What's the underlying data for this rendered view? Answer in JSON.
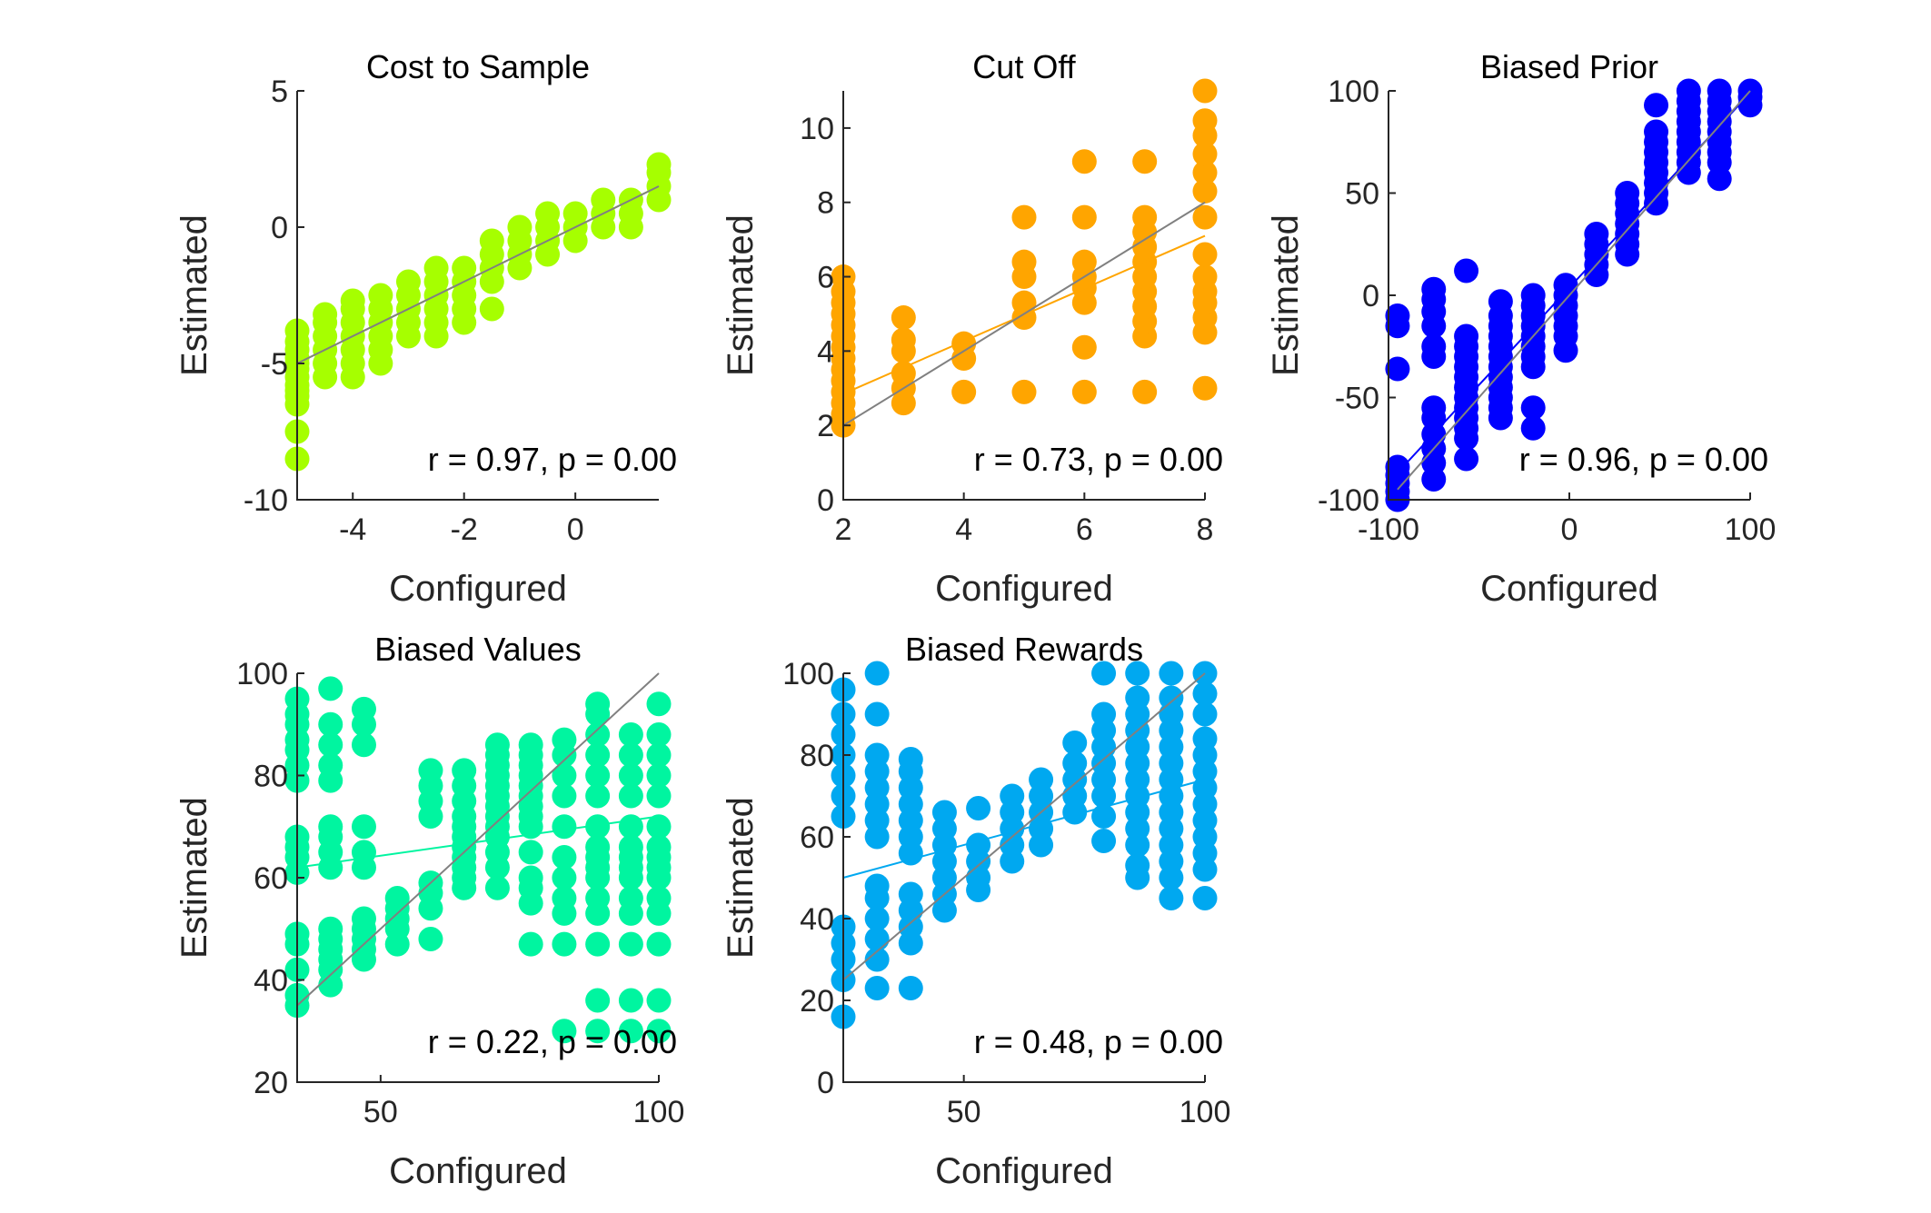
{
  "colors": {
    "identity_line": "#808080",
    "axis": "#262626"
  },
  "chart_data": [
    {
      "type": "scatter",
      "title": "Cost to Sample",
      "xlabel": "Configured",
      "ylabel": "Estimated",
      "xlim": [
        -5,
        1.5
      ],
      "ylim": [
        -10,
        5
      ],
      "xticks": [
        -4,
        -2,
        0
      ],
      "xtick_labels": [
        "-4",
        "-2",
        "0"
      ],
      "yticks": [
        -10,
        -5,
        0,
        5
      ],
      "ytick_labels": [
        "-10",
        "-5",
        "0",
        "5"
      ],
      "color": "#A6FF00",
      "annotation": "r = 0.97, p = 0.00",
      "fit_line": {
        "x": [
          -5,
          1.5
        ],
        "y": [
          -5.0,
          1.5
        ]
      },
      "identity_line": {
        "x": [
          -5,
          1.5
        ],
        "y": [
          -5,
          1.5
        ]
      },
      "points": [
        {
          "x": -5.0,
          "y": [
            -8.5,
            -7.5,
            -6.5,
            -6.2,
            -6.0,
            -5.8,
            -5.5,
            -5.2,
            -5.0,
            -4.8,
            -4.5,
            -4.2,
            -3.8
          ]
        },
        {
          "x": -4.5,
          "y": [
            -5.5,
            -5.0,
            -4.5,
            -4.0,
            -3.5,
            -3.2
          ]
        },
        {
          "x": -4.0,
          "y": [
            -5.5,
            -5.0,
            -4.5,
            -4.0,
            -3.5,
            -3.0,
            -2.7
          ]
        },
        {
          "x": -3.5,
          "y": [
            -5.0,
            -4.5,
            -4.0,
            -3.5,
            -3.0,
            -2.5
          ]
        },
        {
          "x": -3.0,
          "y": [
            -4.0,
            -3.5,
            -3.0,
            -2.5,
            -2.0
          ]
        },
        {
          "x": -2.5,
          "y": [
            -4.0,
            -3.5,
            -3.0,
            -2.5,
            -2.0,
            -1.5
          ]
        },
        {
          "x": -2.0,
          "y": [
            -3.5,
            -3.0,
            -2.5,
            -2.0,
            -1.5
          ]
        },
        {
          "x": -1.5,
          "y": [
            -3.0,
            -2.0,
            -1.5,
            -1.0,
            -0.5
          ]
        },
        {
          "x": -1.0,
          "y": [
            -1.5,
            -1.0,
            -0.5,
            0.0
          ]
        },
        {
          "x": -0.5,
          "y": [
            -1.0,
            -0.5,
            0.0,
            0.5
          ]
        },
        {
          "x": 0.0,
          "y": [
            -0.5,
            0.0,
            0.5
          ]
        },
        {
          "x": 0.5,
          "y": [
            0.0,
            0.5,
            1.0
          ]
        },
        {
          "x": 1.0,
          "y": [
            0.0,
            0.5,
            1.0
          ]
        },
        {
          "x": 1.5,
          "y": [
            1.0,
            1.5,
            2.0,
            2.3
          ]
        }
      ]
    },
    {
      "type": "scatter",
      "title": "Cut Off",
      "xlabel": "Configured",
      "ylabel": "Estimated",
      "xlim": [
        2,
        8
      ],
      "ylim": [
        0,
        11
      ],
      "xticks": [
        2,
        4,
        6,
        8
      ],
      "xtick_labels": [
        "2",
        "4",
        "6",
        "8"
      ],
      "yticks": [
        0,
        2,
        4,
        6,
        8,
        10
      ],
      "ytick_labels": [
        "0",
        "2",
        "4",
        "6",
        "8",
        "10"
      ],
      "color": "#FFA500",
      "annotation": "r = 0.73, p = 0.00",
      "fit_line": {
        "x": [
          2,
          8
        ],
        "y": [
          2.85,
          7.1
        ]
      },
      "identity_line": {
        "x": [
          2,
          8
        ],
        "y": [
          2,
          8
        ]
      },
      "points": [
        {
          "x": 2,
          "y": [
            2.0,
            2.3,
            2.6,
            2.9,
            3.2,
            3.5,
            3.8,
            4.1,
            4.4,
            4.7,
            5.0,
            5.3,
            5.6,
            6.0
          ]
        },
        {
          "x": 3,
          "y": [
            2.6,
            3.0,
            3.4,
            4.0,
            4.3,
            4.9
          ]
        },
        {
          "x": 4,
          "y": [
            2.9,
            3.8,
            4.2
          ]
        },
        {
          "x": 5,
          "y": [
            2.9,
            4.9,
            5.3,
            6.0,
            6.4,
            7.6
          ]
        },
        {
          "x": 6,
          "y": [
            2.9,
            4.1,
            5.3,
            5.7,
            6.0,
            6.4,
            7.6,
            9.1
          ]
        },
        {
          "x": 7,
          "y": [
            2.9,
            4.4,
            4.8,
            5.2,
            5.6,
            6.0,
            6.4,
            6.8,
            7.2,
            7.6,
            9.1
          ]
        },
        {
          "x": 8,
          "y": [
            3.0,
            4.5,
            4.9,
            5.3,
            5.6,
            6.0,
            6.6,
            7.6,
            8.3,
            8.8,
            9.3,
            9.8,
            10.2,
            11.0
          ]
        }
      ]
    },
    {
      "type": "scatter",
      "title": "Biased Prior",
      "xlabel": "Configured",
      "ylabel": "Estimated",
      "xlim": [
        -100,
        100
      ],
      "ylim": [
        -100,
        100
      ],
      "xticks": [
        -100,
        0,
        100
      ],
      "xtick_labels": [
        "-100",
        "0",
        "100"
      ],
      "yticks": [
        -100,
        -50,
        0,
        50,
        100
      ],
      "ytick_labels": [
        "-100",
        "-50",
        "0",
        "50",
        "100"
      ],
      "color": "#0000FF",
      "annotation": "r = 0.96, p = 0.00",
      "fit_line": {
        "x": [
          -90,
          100
        ],
        "y": [
          -82,
          99
        ]
      },
      "identity_line": {
        "x": [
          -95,
          100
        ],
        "y": [
          -95,
          100
        ]
      },
      "points": [
        {
          "x": -95,
          "y": [
            -100,
            -96,
            -92,
            -88,
            -84,
            -36,
            -15,
            -10
          ]
        },
        {
          "x": -75,
          "y": [
            -90,
            -82,
            -75,
            -68,
            -60,
            -55,
            -30,
            -25,
            -15,
            -8,
            -2,
            3
          ]
        },
        {
          "x": -57,
          "y": [
            -80,
            -70,
            -65,
            -60,
            -55,
            -50,
            -45,
            -40,
            -35,
            -30,
            -25,
            -20,
            12
          ]
        },
        {
          "x": -38,
          "y": [
            -60,
            -55,
            -50,
            -45,
            -40,
            -35,
            -30,
            -25,
            -20,
            -15,
            -10,
            -3
          ]
        },
        {
          "x": -20,
          "y": [
            -65,
            -55,
            -35,
            -30,
            -25,
            -20,
            -15,
            -10,
            -5,
            0
          ]
        },
        {
          "x": -2,
          "y": [
            -27,
            -20,
            -15,
            -10,
            -5,
            0,
            5
          ]
        },
        {
          "x": 15,
          "y": [
            10,
            15,
            20,
            25,
            30
          ]
        },
        {
          "x": 32,
          "y": [
            20,
            25,
            30,
            35,
            40,
            45,
            50
          ]
        },
        {
          "x": 48,
          "y": [
            45,
            50,
            55,
            60,
            65,
            70,
            75,
            80,
            93
          ]
        },
        {
          "x": 66,
          "y": [
            60,
            65,
            70,
            75,
            80,
            85,
            90,
            95,
            100
          ]
        },
        {
          "x": 83,
          "y": [
            57,
            65,
            70,
            75,
            80,
            85,
            90,
            95,
            100
          ]
        },
        {
          "x": 100,
          "y": [
            93,
            97,
            100
          ]
        }
      ]
    },
    {
      "type": "scatter",
      "title": "Biased Values",
      "xlabel": "Configured",
      "ylabel": "Estimated",
      "xlim": [
        35,
        100
      ],
      "ylim": [
        20,
        100
      ],
      "xticks": [
        50,
        100
      ],
      "xtick_labels": [
        "50",
        "100"
      ],
      "yticks": [
        20,
        40,
        60,
        80,
        100
      ],
      "ytick_labels": [
        "20",
        "40",
        "60",
        "80",
        "100"
      ],
      "color": "#00F5A0",
      "annotation": "r = 0.22, p = 0.00",
      "fit_line": {
        "x": [
          35,
          100
        ],
        "y": [
          62,
          72
        ]
      },
      "identity_line": {
        "x": [
          35,
          100
        ],
        "y": [
          35,
          100
        ]
      },
      "points": [
        {
          "x": 35,
          "y": [
            35,
            37,
            42,
            47,
            49,
            61,
            64,
            66,
            68,
            79,
            82,
            85,
            87,
            90,
            92,
            95
          ]
        },
        {
          "x": 41,
          "y": [
            39,
            42,
            44,
            46,
            48,
            50,
            62,
            65,
            68,
            70,
            79,
            82,
            86,
            90,
            97
          ]
        },
        {
          "x": 47,
          "y": [
            44,
            46,
            48,
            50,
            52,
            62,
            65,
            70,
            86,
            90,
            93
          ]
        },
        {
          "x": 53,
          "y": [
            47,
            50,
            52,
            54,
            56
          ]
        },
        {
          "x": 59,
          "y": [
            48,
            54,
            57,
            59,
            72,
            75,
            78,
            81
          ]
        },
        {
          "x": 65,
          "y": [
            58,
            60,
            62,
            64,
            66,
            68,
            70,
            72,
            75,
            78,
            81
          ]
        },
        {
          "x": 71,
          "y": [
            58,
            62,
            65,
            68,
            70,
            72,
            74,
            76,
            78,
            80,
            82,
            84,
            86
          ]
        },
        {
          "x": 77,
          "y": [
            47,
            55,
            58,
            60,
            65,
            70,
            72,
            74,
            76,
            78,
            80,
            82,
            84,
            86
          ]
        },
        {
          "x": 83,
          "y": [
            30,
            47,
            53,
            56,
            60,
            64,
            70,
            76,
            80,
            84,
            87
          ]
        },
        {
          "x": 89,
          "y": [
            30,
            36,
            47,
            53,
            56,
            60,
            62,
            64,
            66,
            70,
            76,
            80,
            84,
            88,
            92,
            94
          ]
        },
        {
          "x": 95,
          "y": [
            30,
            36,
            47,
            53,
            56,
            60,
            62,
            64,
            66,
            70,
            76,
            80,
            84,
            88
          ]
        },
        {
          "x": 100,
          "y": [
            30,
            36,
            47,
            53,
            56,
            60,
            62,
            64,
            66,
            70,
            76,
            80,
            84,
            88,
            94
          ]
        }
      ]
    },
    {
      "type": "scatter",
      "title": "Biased Rewards",
      "xlabel": "Configured",
      "ylabel": "Estimated",
      "xlim": [
        25,
        100
      ],
      "ylim": [
        0,
        100
      ],
      "xticks": [
        50,
        100
      ],
      "xtick_labels": [
        "50",
        "100"
      ],
      "yticks": [
        0,
        20,
        40,
        60,
        80,
        100
      ],
      "ytick_labels": [
        "0",
        "20",
        "40",
        "60",
        "80",
        "100"
      ],
      "color": "#00A8F0",
      "annotation": "r = 0.48, p = 0.00",
      "fit_line": {
        "x": [
          25,
          100
        ],
        "y": [
          50,
          74
        ]
      },
      "identity_line": {
        "x": [
          25,
          100
        ],
        "y": [
          25,
          100
        ]
      },
      "points": [
        {
          "x": 25,
          "y": [
            16,
            25,
            30,
            34,
            38,
            65,
            70,
            75,
            80,
            85,
            90,
            96
          ]
        },
        {
          "x": 32,
          "y": [
            23,
            30,
            35,
            40,
            45,
            48,
            60,
            64,
            68,
            72,
            76,
            80,
            90,
            100
          ]
        },
        {
          "x": 39,
          "y": [
            23,
            34,
            38,
            42,
            46,
            56,
            60,
            64,
            68,
            72,
            76,
            79
          ]
        },
        {
          "x": 46,
          "y": [
            42,
            46,
            50,
            54,
            58,
            62,
            66
          ]
        },
        {
          "x": 53,
          "y": [
            47,
            50,
            54,
            58,
            67
          ]
        },
        {
          "x": 60,
          "y": [
            54,
            58,
            62,
            66,
            70
          ]
        },
        {
          "x": 66,
          "y": [
            58,
            62,
            66,
            70,
            74
          ]
        },
        {
          "x": 73,
          "y": [
            66,
            70,
            74,
            78,
            83
          ]
        },
        {
          "x": 79,
          "y": [
            59,
            65,
            70,
            74,
            78,
            82,
            86,
            90,
            100
          ]
        },
        {
          "x": 86,
          "y": [
            50,
            53,
            58,
            62,
            66,
            70,
            74,
            78,
            82,
            86,
            90,
            94,
            100
          ]
        },
        {
          "x": 93,
          "y": [
            45,
            50,
            54,
            58,
            62,
            66,
            70,
            74,
            78,
            82,
            86,
            90,
            94,
            100
          ]
        },
        {
          "x": 100,
          "y": [
            45,
            52,
            56,
            60,
            64,
            68,
            72,
            76,
            80,
            84,
            90,
            95,
            100
          ]
        }
      ]
    }
  ]
}
